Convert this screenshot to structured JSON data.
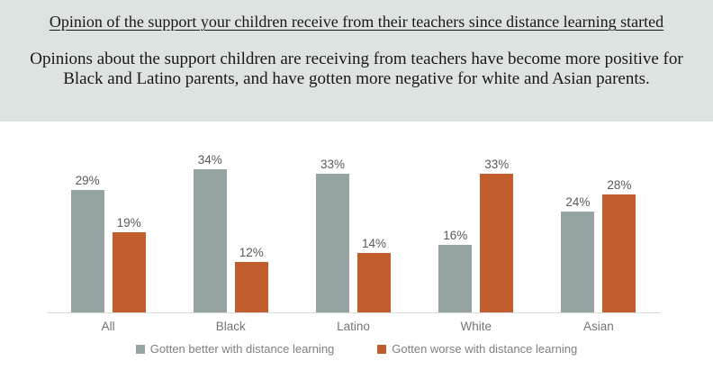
{
  "header": {
    "title": "Opinion of the support your children receive from their teachers since distance learning started",
    "subtitle_lines": [
      "Opinions about the support children are receiving from teachers have become more positive for",
      "Black and Latino parents, and have gotten more negative for white and Asian parents."
    ]
  },
  "chart_data": {
    "type": "bar",
    "title": "Opinion of the support your children receive from their teachers since distance learning started",
    "categories": [
      "All",
      "Black",
      "Latino",
      "White",
      "Asian"
    ],
    "series": [
      {
        "name": "Gotten better with distance learning",
        "color": "#96a3a3",
        "values": [
          29,
          34,
          33,
          16,
          24
        ]
      },
      {
        "name": "Gotten worse with distance learning",
        "color": "#c25d2e",
        "values": [
          19,
          12,
          14,
          33,
          28
        ]
      }
    ],
    "value_suffix": "%",
    "ylim": [
      0,
      40
    ],
    "grid": false,
    "data_labels": true,
    "legend_position": "bottom",
    "xlabel": "",
    "ylabel": ""
  },
  "colors": {
    "header_background": "#dde3e1",
    "header_text": "#181818",
    "series_better": "#96a3a3",
    "series_worse": "#c25d2e",
    "value_label": "#595959",
    "category_label": "#757575",
    "legend_text": "#808080",
    "axis_line": "#d9d9d9"
  }
}
